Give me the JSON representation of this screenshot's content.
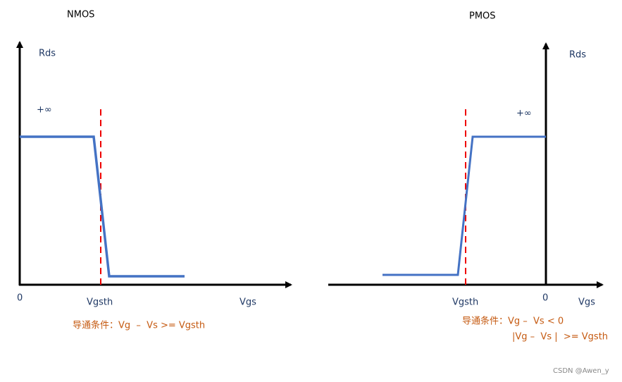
{
  "nmos": {
    "title": "NMOS",
    "y_label": "Rds",
    "infinity": "+∞",
    "origin": "0",
    "threshold": "Vgsth",
    "x_label": "Vgs",
    "condition": "导通条件：Vg  –  Vs >= Vgsth"
  },
  "pmos": {
    "title": "PMOS",
    "y_label": "Rds",
    "infinity": "+∞",
    "origin": "0",
    "threshold": "Vgsth",
    "x_label": "Vgs",
    "condition": [
      "导通条件：Vg –  Vs < 0",
      "|Vg –  Vs |  >= Vgsth"
    ]
  },
  "watermark": "CSDN @Awen_y"
}
